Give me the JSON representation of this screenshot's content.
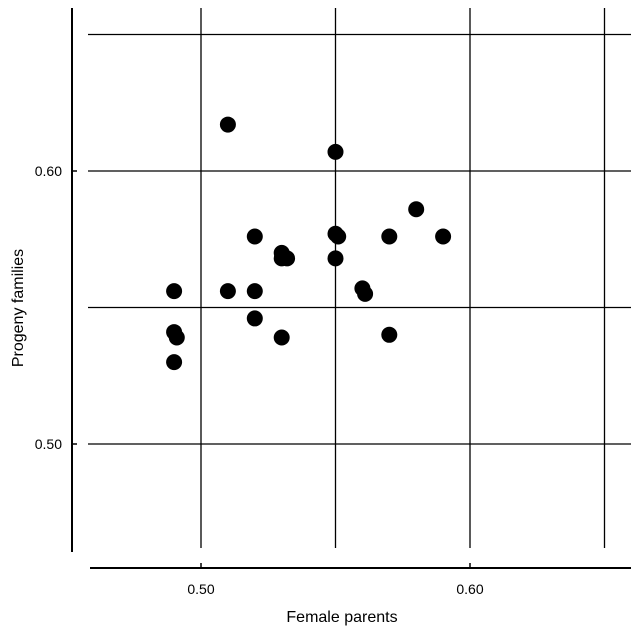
{
  "chart_data": {
    "type": "scatter",
    "title": "",
    "xlabel": "Female parents",
    "ylabel": "Progeny families",
    "xlim": [
      0.45,
      0.65
    ],
    "ylim": [
      0.46,
      0.66
    ],
    "grid": true,
    "x_ticks": [
      {
        "value": 0.5,
        "label": "0.50"
      },
      {
        "value": 0.6,
        "label": "0.60"
      }
    ],
    "y_ticks": [
      {
        "value": 0.5,
        "label": "0.50"
      },
      {
        "value": 0.6,
        "label": "0.60"
      }
    ],
    "series": [
      {
        "points": [
          {
            "x": 0.49,
            "y": 0.556
          },
          {
            "x": 0.49,
            "y": 0.541
          },
          {
            "x": 0.491,
            "y": 0.539
          },
          {
            "x": 0.49,
            "y": 0.53
          },
          {
            "x": 0.51,
            "y": 0.617
          },
          {
            "x": 0.51,
            "y": 0.556
          },
          {
            "x": 0.52,
            "y": 0.576
          },
          {
            "x": 0.52,
            "y": 0.556
          },
          {
            "x": 0.52,
            "y": 0.546
          },
          {
            "x": 0.53,
            "y": 0.568
          },
          {
            "x": 0.53,
            "y": 0.57
          },
          {
            "x": 0.532,
            "y": 0.568
          },
          {
            "x": 0.53,
            "y": 0.539
          },
          {
            "x": 0.55,
            "y": 0.607
          },
          {
            "x": 0.55,
            "y": 0.577
          },
          {
            "x": 0.551,
            "y": 0.576
          },
          {
            "x": 0.55,
            "y": 0.568
          },
          {
            "x": 0.56,
            "y": 0.557
          },
          {
            "x": 0.561,
            "y": 0.555
          },
          {
            "x": 0.57,
            "y": 0.576
          },
          {
            "x": 0.57,
            "y": 0.54
          },
          {
            "x": 0.58,
            "y": 0.586
          },
          {
            "x": 0.59,
            "y": 0.576
          }
        ]
      }
    ]
  }
}
